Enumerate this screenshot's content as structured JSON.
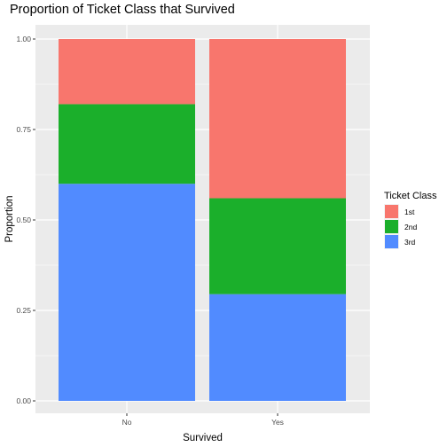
{
  "chart_data": {
    "type": "bar",
    "stacked": true,
    "title": "Proportion of Ticket Class that Survived",
    "xlabel": "Survived",
    "ylabel": "Proportion",
    "categories": [
      "No",
      "Yes"
    ],
    "series": [
      {
        "name": "1st",
        "color": "#F8766D",
        "values": [
          0.18,
          0.44
        ]
      },
      {
        "name": "2nd",
        "color": "#1BAF2B",
        "values": [
          0.22,
          0.265
        ]
      },
      {
        "name": "3rd",
        "color": "#518BFF",
        "values": [
          0.6,
          0.295
        ]
      }
    ],
    "stack_order": [
      "3rd",
      "2nd",
      "1st"
    ],
    "ylim": [
      0,
      1
    ],
    "yticks": [
      0,
      0.25,
      0.5,
      0.75,
      1.0
    ],
    "ytick_labels": [
      "0.00",
      "0.25",
      "0.50",
      "0.75",
      "1.00"
    ],
    "grid": true,
    "panel_background": "#EBEBEB",
    "legend": {
      "title": "Ticket Class",
      "placement": "right",
      "entries": [
        "1st",
        "2nd",
        "3rd"
      ]
    }
  }
}
